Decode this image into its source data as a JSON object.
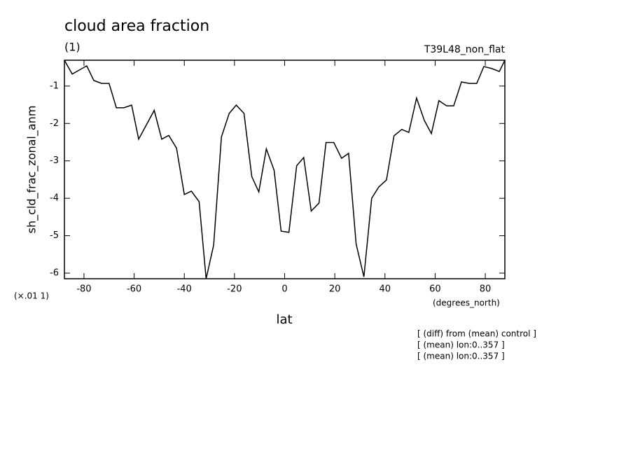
{
  "chart_data": {
    "type": "line",
    "title": "cloud area fraction",
    "subtitle": "(1)",
    "run_label": "T39L48_non_flat",
    "y_label": "sh_cld_frac_zonal_anm",
    "y_scale_note": "(×.01 1)",
    "x_unit": "(degrees_north)",
    "x_label": "lat",
    "notes": [
      "[ (diff) from (mean) control ]",
      "[ (mean) lon:0..357 ]",
      "[ (mean) lon:0..357 ]"
    ],
    "xlim": [
      -87.8,
      87.8
    ],
    "ylim": [
      -6.15,
      -0.31
    ],
    "xticks": [
      -80,
      -60,
      -40,
      -20,
      0,
      20,
      40,
      60,
      80
    ],
    "yticks": [
      -1,
      -2,
      -3,
      -4,
      -5,
      -6
    ],
    "color": "#000000",
    "x": [
      -87.8,
      -84.7,
      -78.9,
      -76.1,
      -73.0,
      -70.0,
      -67.1,
      -64.1,
      -61.0,
      -58.2,
      -52.0,
      -49.0,
      -46.2,
      -43.1,
      -40.0,
      -37.2,
      -34.1,
      -31.3,
      -28.3,
      -25.2,
      -22.1,
      -19.3,
      -16.2,
      -13.1,
      -10.3,
      -7.3,
      -4.2,
      -1.4,
      1.7,
      4.8,
      7.6,
      10.6,
      13.7,
      16.5,
      19.6,
      22.7,
      25.5,
      28.5,
      31.6,
      34.7,
      37.5,
      40.6,
      43.6,
      46.7,
      49.5,
      52.6,
      55.7,
      58.5,
      61.5,
      64.6,
      67.4,
      70.5,
      73.6,
      76.6,
      79.4,
      82.5,
      85.6,
      87.8
    ],
    "values": [
      -0.31,
      -0.68,
      -0.46,
      -0.85,
      -0.93,
      -0.93,
      -1.58,
      -1.58,
      -1.51,
      -2.42,
      -1.65,
      -2.42,
      -2.32,
      -2.66,
      -3.9,
      -3.81,
      -4.09,
      -6.15,
      -5.25,
      -2.36,
      -1.73,
      -1.51,
      -1.73,
      -3.42,
      -3.83,
      -2.68,
      -3.25,
      -4.88,
      -4.91,
      -3.13,
      -2.91,
      -4.34,
      -4.13,
      -2.51,
      -2.51,
      -2.93,
      -2.8,
      -5.22,
      -6.1,
      -4.0,
      -3.7,
      -3.51,
      -2.33,
      -2.16,
      -2.24,
      -1.32,
      -1.92,
      -2.27,
      -1.39,
      -1.53,
      -1.53,
      -0.89,
      -0.93,
      -0.93,
      -0.48,
      -0.53,
      -0.61,
      -0.31
    ]
  }
}
